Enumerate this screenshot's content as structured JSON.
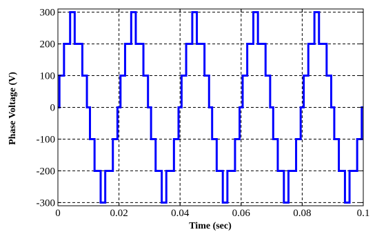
{
  "chart_data": {
    "type": "line",
    "title": "",
    "xlabel": "Time (sec)",
    "ylabel": "Phase Voltage (V)",
    "xlim": [
      0,
      0.1
    ],
    "ylim": [
      -310,
      310
    ],
    "grid": true,
    "grid_style": "dashed",
    "x_ticks": [
      0,
      0.02,
      0.04,
      0.06,
      0.08,
      0.1
    ],
    "x_tick_labels": [
      "0",
      "0.02",
      "0.04",
      "0.06",
      "0.08",
      "0.1"
    ],
    "y_ticks": [
      -300,
      -200,
      -100,
      0,
      100,
      200,
      300
    ],
    "y_tick_labels": [
      "-300",
      "-200",
      "-100",
      "0",
      "100",
      "200",
      "300"
    ],
    "series": [
      {
        "color": "#0000ff",
        "waveform": "seven-level stepped PWM phase voltage",
        "frequency_hz": 50,
        "levels": [
          -300,
          -200,
          -100,
          0,
          100,
          200,
          300
        ],
        "x": [
          0,
          0.0005,
          0.0005,
          0.001,
          0.001,
          0.0015,
          0.0015,
          0.002,
          0.002,
          0.0025,
          0.0025,
          0.003,
          0.003,
          0.0035,
          0.0035,
          0.004,
          0.004,
          0.0045,
          0.0045,
          0.005,
          0.005,
          0.0055,
          0.0055,
          0.006,
          0.006,
          0.0065,
          0.0065,
          0.007,
          0.007,
          0.0075,
          0.0075,
          0.008,
          0.008,
          0.0085,
          0.0085,
          0.009,
          0.009,
          0.0095,
          0.0095,
          0.01,
          0.01,
          0.0105,
          0.0105,
          0.011,
          0.011,
          0.0115,
          0.0115,
          0.012,
          0.012,
          0.0125,
          0.0125,
          0.013,
          0.013,
          0.0135,
          0.0135,
          0.014,
          0.014,
          0.0145,
          0.0145,
          0.015,
          0.015,
          0.0155,
          0.0155,
          0.016,
          0.016,
          0.0165,
          0.0165,
          0.017,
          0.017,
          0.0175,
          0.0175,
          0.018,
          0.018,
          0.0185,
          0.0185,
          0.019,
          0.019,
          0.0195,
          0.0195,
          0.02,
          0.02,
          0.0205,
          0.0205,
          0.021,
          0.021,
          0.0215,
          0.0215,
          0.022,
          0.022,
          0.0225,
          0.0225,
          0.023,
          0.023,
          0.0235,
          0.0235,
          0.024,
          0.024,
          0.0245,
          0.0245,
          0.025,
          0.025,
          0.0255,
          0.0255,
          0.026,
          0.026,
          0.0265,
          0.0265,
          0.027,
          0.027,
          0.0275,
          0.0275,
          0.028,
          0.028,
          0.0285,
          0.0285,
          0.029,
          0.029,
          0.0295,
          0.0295,
          0.03,
          0.03,
          0.0305,
          0.0305,
          0.031,
          0.031,
          0.0315,
          0.0315,
          0.032,
          0.032,
          0.0325,
          0.0325,
          0.033,
          0.033,
          0.0335,
          0.0335,
          0.034,
          0.034,
          0.0345,
          0.0345,
          0.035,
          0.035,
          0.0355,
          0.0355,
          0.036,
          0.036,
          0.0365,
          0.0365,
          0.037,
          0.037,
          0.0375,
          0.0375,
          0.038,
          0.038,
          0.0385,
          0.0385,
          0.039,
          0.039,
          0.0395,
          0.0395,
          0.04,
          0.04,
          0.0405,
          0.0405,
          0.041,
          0.041,
          0.0415,
          0.0415,
          0.042,
          0.042,
          0.0425,
          0.0425,
          0.043,
          0.043,
          0.0435,
          0.0435,
          0.044,
          0.044,
          0.0445,
          0.0445,
          0.045,
          0.045,
          0.0455,
          0.0455,
          0.046,
          0.046,
          0.0465,
          0.0465,
          0.047,
          0.047,
          0.0475,
          0.0475,
          0.048,
          0.048,
          0.0485,
          0.0485,
          0.049,
          0.049,
          0.0495,
          0.0495,
          0.05,
          0.05,
          0.0505,
          0.0505,
          0.051,
          0.051,
          0.0515,
          0.0515,
          0.052,
          0.052,
          0.0525,
          0.0525,
          0.053,
          0.053,
          0.0535,
          0.0535,
          0.054,
          0.054,
          0.0545,
          0.0545,
          0.055,
          0.055,
          0.0555,
          0.0555,
          0.056,
          0.056,
          0.0565,
          0.0565,
          0.057,
          0.057,
          0.0575,
          0.0575,
          0.058,
          0.058,
          0.0585,
          0.0585,
          0.059,
          0.059,
          0.0595,
          0.0595,
          0.06,
          0.06,
          0.0605,
          0.0605,
          0.061,
          0.061,
          0.0615,
          0.0615,
          0.062,
          0.062,
          0.0625,
          0.0625,
          0.063,
          0.063,
          0.0635,
          0.0635,
          0.064,
          0.064,
          0.0645,
          0.0645,
          0.065,
          0.065,
          0.0655,
          0.0655,
          0.066,
          0.066,
          0.0665,
          0.0665,
          0.067,
          0.067,
          0.0675,
          0.0675,
          0.068,
          0.068,
          0.0685,
          0.0685,
          0.069,
          0.069,
          0.0695,
          0.0695,
          0.07,
          0.07,
          0.0705,
          0.0705,
          0.071,
          0.071,
          0.0715,
          0.0715,
          0.072,
          0.072,
          0.0725,
          0.0725,
          0.073,
          0.073,
          0.0735,
          0.0735,
          0.074,
          0.074,
          0.0745,
          0.0745,
          0.075,
          0.075,
          0.0755,
          0.0755,
          0.076,
          0.076,
          0.0765,
          0.0765,
          0.077,
          0.077,
          0.0775,
          0.0775,
          0.078,
          0.078,
          0.0785,
          0.0785,
          0.079,
          0.079,
          0.0795,
          0.0795,
          0.08,
          0.08,
          0.0805,
          0.0805,
          0.081,
          0.081,
          0.0815,
          0.0815,
          0.082,
          0.082,
          0.0825,
          0.0825,
          0.083,
          0.083,
          0.0835,
          0.0835,
          0.084,
          0.084,
          0.0845,
          0.0845,
          0.085,
          0.085,
          0.0855,
          0.0855,
          0.086,
          0.086,
          0.0865,
          0.0865,
          0.087,
          0.087,
          0.0875,
          0.0875,
          0.088,
          0.088,
          0.0885,
          0.0885,
          0.089,
          0.089,
          0.0895,
          0.0895,
          0.09,
          0.09,
          0.0905,
          0.0905,
          0.091,
          0.091,
          0.0915,
          0.0915,
          0.092,
          0.092,
          0.0925,
          0.0925,
          0.093,
          0.093,
          0.0935,
          0.0935,
          0.094,
          0.094,
          0.0945,
          0.0945,
          0.095,
          0.095,
          0.0955,
          0.0955,
          0.096,
          0.096,
          0.0965,
          0.0965,
          0.097,
          0.097,
          0.0975,
          0.0975,
          0.098,
          0.098,
          0.0985,
          0.0985,
          0.099,
          0.099,
          0.0995,
          0.0995,
          0.1
        ],
        "y": [
          0,
          0,
          100,
          100,
          100,
          100,
          100,
          100,
          200,
          200,
          200,
          200,
          200,
          200,
          200,
          200,
          300,
          300,
          300,
          300,
          300,
          300,
          200,
          200,
          200,
          200,
          200,
          200,
          200,
          200,
          200,
          200,
          100,
          100,
          100,
          100,
          100,
          100,
          0,
          0,
          0,
          0,
          -100,
          -100,
          -100,
          -100,
          -100,
          -100,
          -200,
          -200,
          -200,
          -200,
          -200,
          -200,
          -200,
          -200,
          -300,
          -300,
          -300,
          -300,
          -300,
          -300,
          -200,
          -200,
          -200,
          -200,
          -200,
          -200,
          -200,
          -200,
          -200,
          -200,
          -100,
          -100,
          -100,
          -100,
          -100,
          -100,
          0,
          0,
          0,
          0,
          100,
          100,
          100,
          100,
          100,
          100,
          200,
          200,
          200,
          200,
          200,
          200,
          200,
          200,
          300,
          300,
          300,
          300,
          300,
          300,
          200,
          200,
          200,
          200,
          200,
          200,
          200,
          200,
          200,
          200,
          100,
          100,
          100,
          100,
          100,
          100,
          0,
          0,
          0,
          0,
          -100,
          -100,
          -100,
          -100,
          -100,
          -100,
          -200,
          -200,
          -200,
          -200,
          -200,
          -200,
          -200,
          -200,
          -300,
          -300,
          -300,
          -300,
          -300,
          -300,
          -200,
          -200,
          -200,
          -200,
          -200,
          -200,
          -200,
          -200,
          -200,
          -200,
          -100,
          -100,
          -100,
          -100,
          -100,
          -100,
          0,
          0,
          0,
          0,
          100,
          100,
          100,
          100,
          100,
          100,
          200,
          200,
          200,
          200,
          200,
          200,
          200,
          200,
          300,
          300,
          300,
          300,
          300,
          300,
          200,
          200,
          200,
          200,
          200,
          200,
          200,
          200,
          200,
          200,
          100,
          100,
          100,
          100,
          100,
          100,
          0,
          0,
          0,
          0,
          -100,
          -100,
          -100,
          -100,
          -100,
          -100,
          -200,
          -200,
          -200,
          -200,
          -200,
          -200,
          -200,
          -200,
          -300,
          -300,
          -300,
          -300,
          -300,
          -300,
          -200,
          -200,
          -200,
          -200,
          -200,
          -200,
          -200,
          -200,
          -200,
          -200,
          -100,
          -100,
          -100,
          -100,
          -100,
          -100,
          0,
          0,
          0,
          0,
          100,
          100,
          100,
          100,
          100,
          100,
          200,
          200,
          200,
          200,
          200,
          200,
          200,
          200,
          300,
          300,
          300,
          300,
          300,
          300,
          200,
          200,
          200,
          200,
          200,
          200,
          200,
          200,
          200,
          200,
          100,
          100,
          100,
          100,
          100,
          100,
          0,
          0,
          0,
          0,
          -100,
          -100,
          -100,
          -100,
          -100,
          -100,
          -200,
          -200,
          -200,
          -200,
          -200,
          -200,
          -200,
          -200,
          -300,
          -300,
          -300,
          -300,
          -300,
          -300,
          -200,
          -200,
          -200,
          -200,
          -200,
          -200,
          -200,
          -200,
          -200,
          -200,
          -100,
          -100,
          -100,
          -100,
          -100,
          -100,
          0,
          0,
          0,
          0,
          100,
          100,
          100,
          100,
          100,
          100,
          200,
          200,
          200,
          200,
          200,
          200,
          200,
          200,
          300,
          300,
          300,
          300,
          300,
          300,
          200,
          200,
          200,
          200,
          200,
          200,
          200,
          200,
          200,
          200,
          100,
          100,
          100,
          100,
          100,
          100,
          0,
          0,
          0,
          0,
          -100,
          -100,
          -100,
          -100,
          -100,
          -100,
          -200,
          -200,
          -200,
          -200,
          -200,
          -200,
          -200,
          -200,
          -300,
          -300,
          -300,
          -300,
          -300,
          -300,
          -200,
          -200,
          -200,
          -200,
          -200,
          -200,
          -200,
          -200,
          -200,
          -200,
          -100,
          -100,
          -100,
          -100,
          -100,
          -100,
          0,
          0
        ]
      }
    ]
  }
}
